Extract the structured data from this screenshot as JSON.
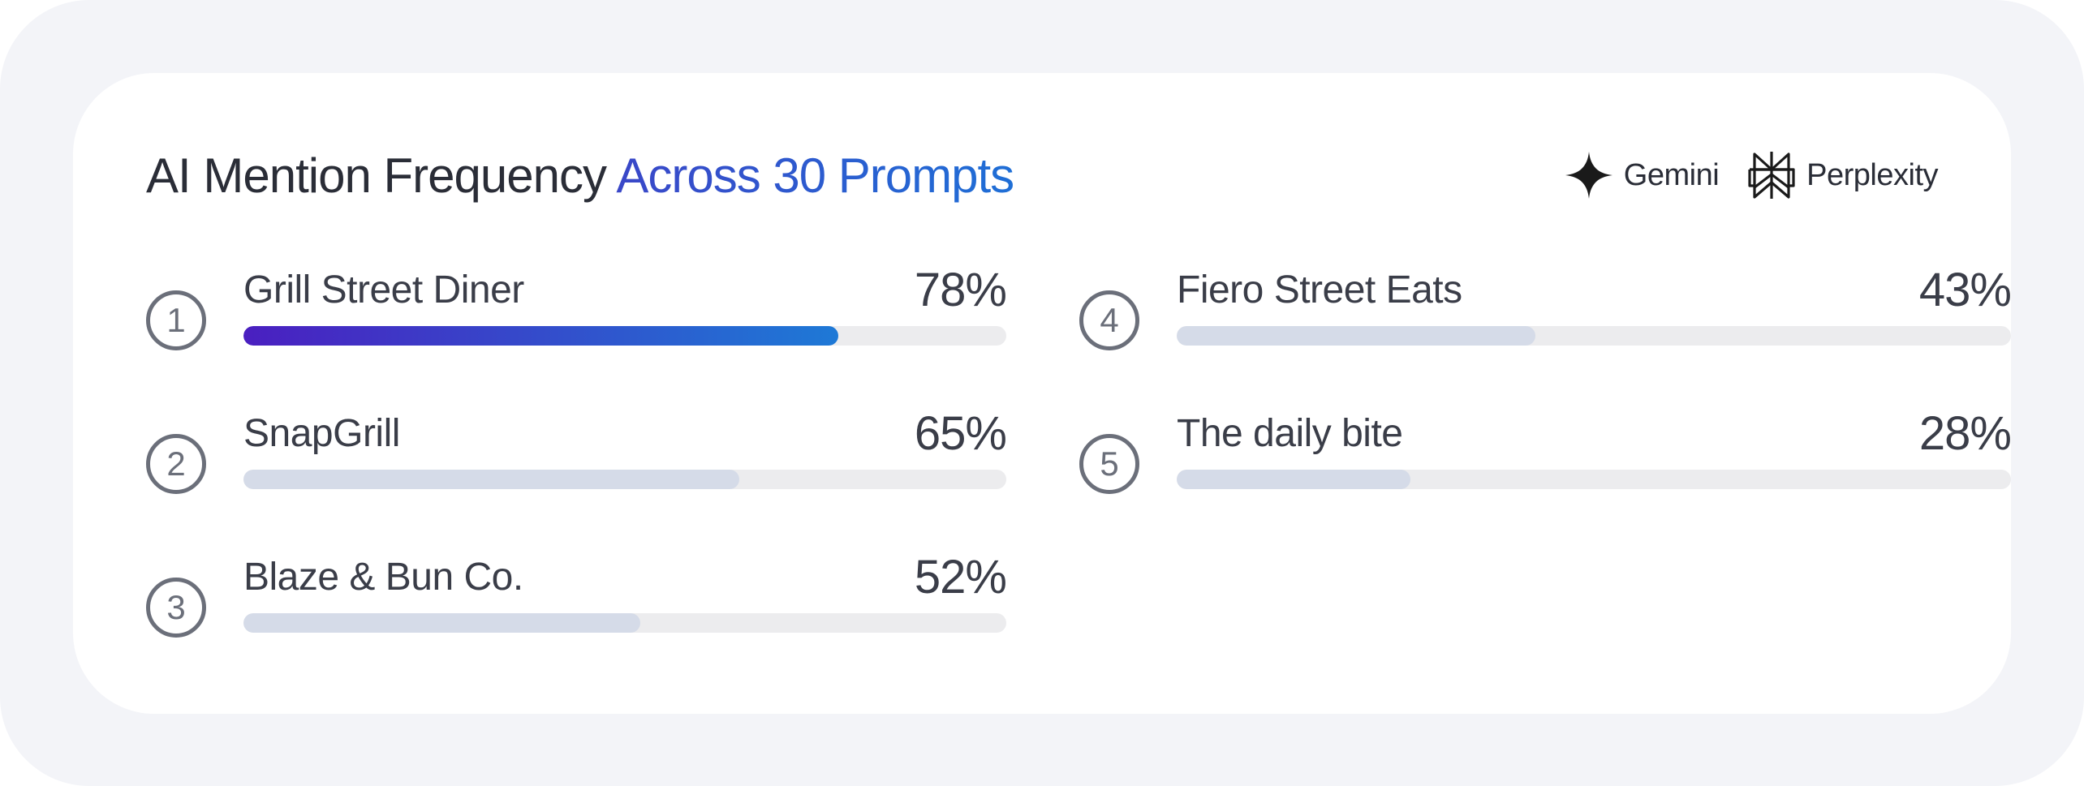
{
  "title": {
    "prefix": "AI Mention Frequency",
    "accent": "Across 30 Prompts"
  },
  "legend": [
    {
      "label": "Gemini",
      "icon": "gemini-icon"
    },
    {
      "label": "Perplexity",
      "icon": "perplexity-icon"
    }
  ],
  "colors": {
    "accent_start": "#4a1fc0",
    "accent_end": "#1e79d6",
    "bar_fill": "#d5dbe8",
    "bar_track": "#ececee",
    "text": "#3a3d48"
  },
  "ranking": [
    {
      "rank": "1",
      "name": "Grill Street Diner",
      "percent_label": "78%",
      "value": 78,
      "highlight": true
    },
    {
      "rank": "2",
      "name": "SnapGrill",
      "percent_label": "65%",
      "value": 65,
      "highlight": false
    },
    {
      "rank": "3",
      "name": "Blaze & Bun Co.",
      "percent_label": "52%",
      "value": 52,
      "highlight": false
    },
    {
      "rank": "4",
      "name": "Fiero Street Eats",
      "percent_label": "43%",
      "value": 43,
      "highlight": false
    },
    {
      "rank": "5",
      "name": "The daily bite",
      "percent_label": "28%",
      "value": 28,
      "highlight": false
    }
  ]
}
